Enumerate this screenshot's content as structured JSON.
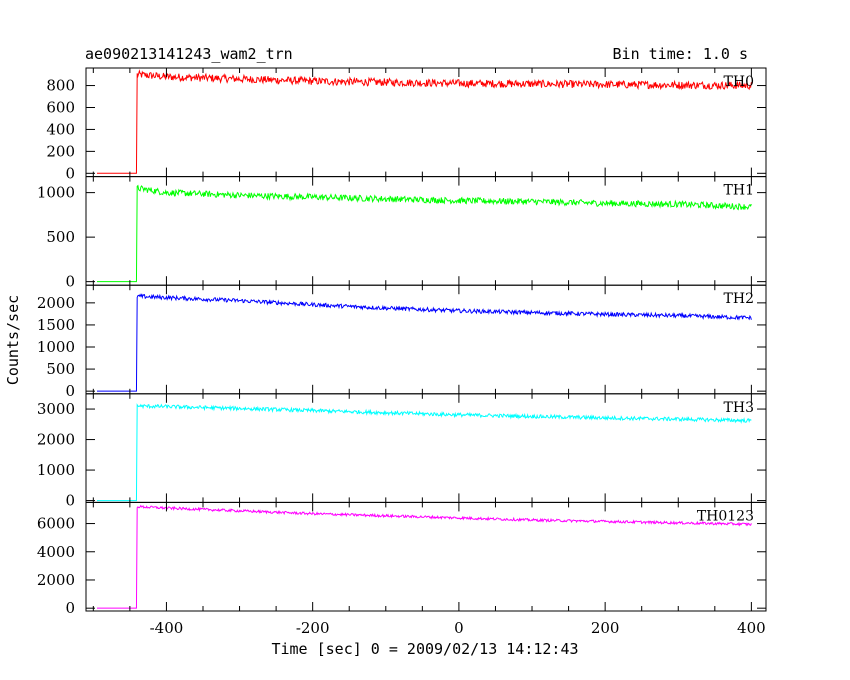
{
  "chart_data": {
    "type": "line",
    "title": "ae090213141243_wam2_trn",
    "subtitle": "Bin time: 1.0 s",
    "xlabel": "Time [sec] 0 = 2009/02/13 14:12:43",
    "ylabel": "Counts/sec",
    "xlim": [
      -510,
      420
    ],
    "xticks": [
      -400,
      -200,
      0,
      200,
      400
    ],
    "grid": false,
    "panels": [
      {
        "name": "TH0",
        "color": "#ff0000",
        "ylim": [
          -30,
          960
        ],
        "yticks": [
          0,
          200,
          400,
          600,
          800
        ],
        "pre_level": 0,
        "onset": -440,
        "points": [
          [
            -495,
            0
          ],
          [
            -441,
            0
          ],
          [
            -440,
            900
          ],
          [
            -400,
            880
          ],
          [
            -300,
            860
          ],
          [
            -200,
            840
          ],
          [
            -100,
            830
          ],
          [
            0,
            820
          ],
          [
            100,
            815
          ],
          [
            200,
            810
          ],
          [
            300,
            805
          ],
          [
            400,
            800
          ]
        ],
        "noise": 35
      },
      {
        "name": "TH1",
        "color": "#00ff00",
        "ylim": [
          -40,
          1180
        ],
        "yticks": [
          0,
          500,
          1000
        ],
        "pre_level": 0,
        "onset": -440,
        "points": [
          [
            -495,
            0
          ],
          [
            -441,
            0
          ],
          [
            -440,
            1050
          ],
          [
            -400,
            1000
          ],
          [
            -300,
            970
          ],
          [
            -200,
            950
          ],
          [
            -100,
            930
          ],
          [
            0,
            910
          ],
          [
            100,
            900
          ],
          [
            200,
            880
          ],
          [
            300,
            870
          ],
          [
            400,
            840
          ]
        ],
        "noise": 35
      },
      {
        "name": "TH2",
        "color": "#0000ff",
        "ylim": [
          -60,
          2400
        ],
        "yticks": [
          0,
          500,
          1000,
          1500,
          2000
        ],
        "pre_level": 0,
        "onset": -440,
        "points": [
          [
            -495,
            0
          ],
          [
            -441,
            0
          ],
          [
            -440,
            2150
          ],
          [
            -400,
            2120
          ],
          [
            -300,
            2050
          ],
          [
            -200,
            1960
          ],
          [
            -100,
            1880
          ],
          [
            0,
            1820
          ],
          [
            100,
            1780
          ],
          [
            200,
            1740
          ],
          [
            300,
            1710
          ],
          [
            400,
            1660
          ]
        ],
        "noise": 45
      },
      {
        "name": "TH3",
        "color": "#00ffff",
        "ylim": [
          -60,
          3500
        ],
        "yticks": [
          0,
          1000,
          2000,
          3000
        ],
        "pre_level": 0,
        "onset": -440,
        "points": [
          [
            -495,
            0
          ],
          [
            -441,
            0
          ],
          [
            -440,
            3100
          ],
          [
            -400,
            3080
          ],
          [
            -300,
            3020
          ],
          [
            -200,
            2950
          ],
          [
            -100,
            2880
          ],
          [
            0,
            2810
          ],
          [
            100,
            2760
          ],
          [
            200,
            2710
          ],
          [
            300,
            2670
          ],
          [
            400,
            2620
          ]
        ],
        "noise": 60
      },
      {
        "name": "TH0123",
        "color": "#ff00ff",
        "ylim": [
          -200,
          7500
        ],
        "yticks": [
          0,
          2000,
          4000,
          6000
        ],
        "pre_level": 0,
        "onset": -440,
        "points": [
          [
            -495,
            0
          ],
          [
            -441,
            0
          ],
          [
            -440,
            7200
          ],
          [
            -400,
            7100
          ],
          [
            -300,
            6900
          ],
          [
            -200,
            6700
          ],
          [
            -100,
            6550
          ],
          [
            0,
            6400
          ],
          [
            100,
            6250
          ],
          [
            200,
            6150
          ],
          [
            300,
            6050
          ],
          [
            400,
            5950
          ]
        ],
        "noise": 90
      }
    ]
  }
}
